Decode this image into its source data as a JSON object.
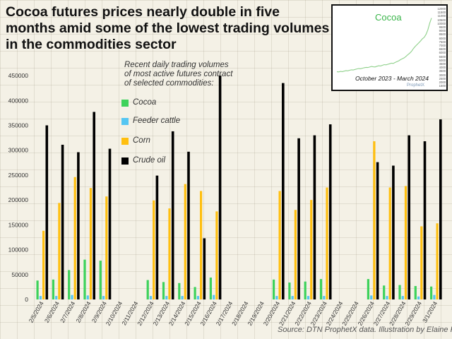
{
  "title": "Cocoa futures prices nearly double in five months amid some of the lowest trading volumes in the commodities sector",
  "legend_caption": "Recent daily trading volumes of most active futures contract of selected commodities:",
  "source": "Source: DTN ProphetX data. Illustration by Elaine Kub.",
  "inset": {
    "title": "Cocoa",
    "caption": "October 2023 - March 2024",
    "brand": "ProphetX",
    "line_color": "#8ed08a",
    "axis_labels": [
      "12000",
      "11500",
      "11000",
      "10500",
      "10000",
      "9500",
      "9000",
      "8500",
      "8000",
      "7500",
      "7000",
      "6500",
      "6000",
      "5500",
      "5000",
      "4500",
      "4000",
      "3500",
      "3000",
      "2500",
      "2000",
      "1500"
    ],
    "trend": [
      3640,
      3620,
      3690,
      3660,
      3720,
      3780,
      3760,
      3840,
      3900,
      3880,
      3950,
      4020,
      4080,
      4050,
      4120,
      4180,
      4230,
      4210,
      4280,
      4350,
      4310,
      4290,
      4380,
      4450,
      4420,
      4510,
      4600,
      4570,
      4650,
      4720,
      4800,
      4760,
      4900,
      5000,
      5120,
      5280,
      5400,
      5520,
      5720,
      5950,
      6150,
      6400,
      6750,
      7050,
      7300,
      7550,
      7800,
      8100,
      8300,
      8700,
      9300,
      10200,
      10900
    ]
  },
  "colors": {
    "Cocoa": "#3dd25a",
    "Feeder cattle": "#55c6f2",
    "Corn": "#ffbf0f",
    "Crude oil": "#000000"
  },
  "chart_data": {
    "type": "bar",
    "categories": [
      "2/5/2024",
      "2/6/2024",
      "2/7/2024",
      "2/8/2024",
      "2/9/2024",
      "2/10/2024",
      "2/11/2024",
      "2/12/2024",
      "2/13/2024",
      "2/14/2024",
      "2/15/2024",
      "2/16/2024",
      "2/17/2024",
      "2/18/2024",
      "2/19/2024",
      "2/20/2024",
      "2/21/2024",
      "2/22/2024",
      "2/23/2024",
      "2/24/2024",
      "2/25/2024",
      "2/26/2024",
      "2/27/2024",
      "2/28/2024",
      "2/29/2024",
      "3/1/2024"
    ],
    "series": [
      {
        "name": "Cocoa",
        "values": [
          38000,
          40000,
          59000,
          80000,
          78000,
          0,
          0,
          39000,
          35000,
          33000,
          25000,
          44000,
          0,
          0,
          0,
          40000,
          34000,
          36000,
          41000,
          0,
          0,
          41000,
          28000,
          29000,
          27000,
          26000
        ]
      },
      {
        "name": "Feeder cattle",
        "values": [
          7000,
          7000,
          9000,
          8000,
          7000,
          0,
          0,
          7000,
          7000,
          7000,
          7000,
          9000,
          0,
          0,
          0,
          7000,
          7000,
          7000,
          7000,
          0,
          0,
          8000,
          7000,
          7000,
          6000,
          9000
        ]
      },
      {
        "name": "Corn",
        "values": [
          138000,
          194000,
          246000,
          224000,
          207000,
          0,
          0,
          199000,
          183000,
          232000,
          218000,
          177000,
          0,
          0,
          0,
          218000,
          180000,
          200000,
          225000,
          0,
          0,
          318000,
          225000,
          228000,
          147000,
          153000
        ]
      },
      {
        "name": "Crude oil",
        "values": [
          350000,
          311000,
          296000,
          377000,
          303000,
          0,
          0,
          249000,
          338000,
          297000,
          123000,
          450000,
          0,
          0,
          0,
          435000,
          324000,
          330000,
          352000,
          0,
          0,
          276000,
          269000,
          330000,
          318000,
          362000
        ]
      }
    ],
    "yticks": [
      0,
      50000,
      100000,
      150000,
      200000,
      250000,
      300000,
      350000,
      400000,
      450000
    ],
    "ylim": [
      0,
      460000
    ],
    "legend_position": "top-left",
    "grid": true
  }
}
